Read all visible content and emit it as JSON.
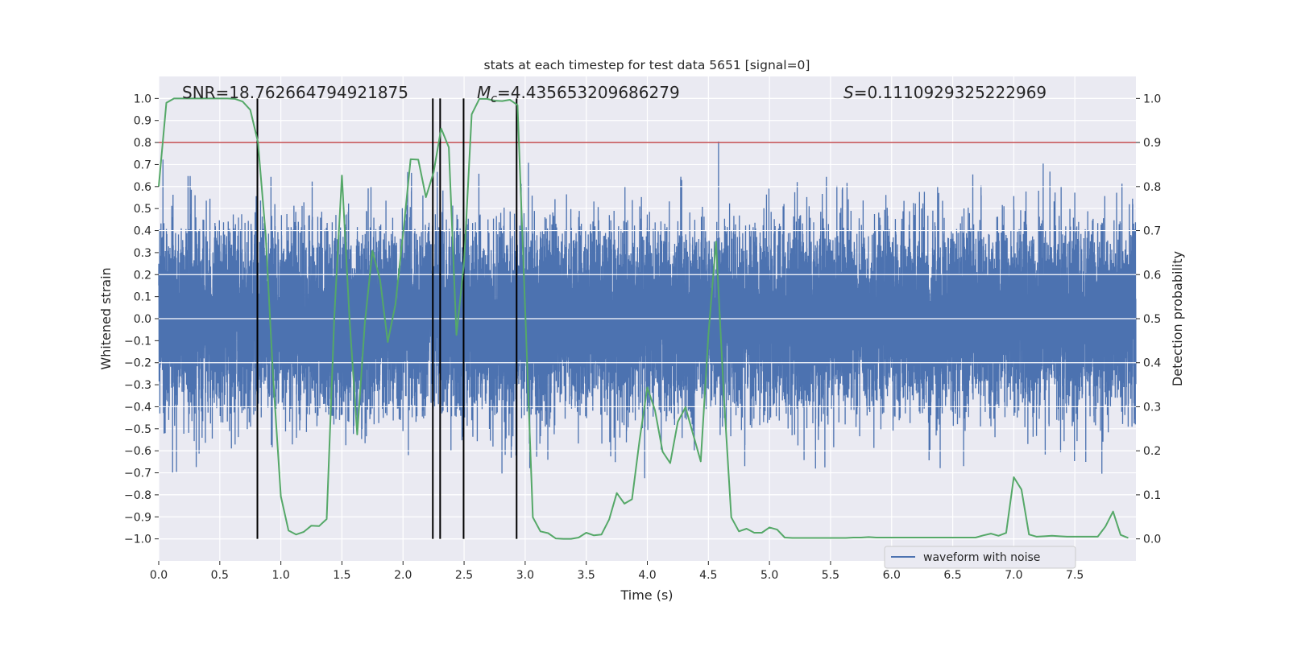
{
  "chart_data": {
    "type": "line",
    "title": "stats at each timestep for test data 5651 [signal=0]",
    "xlabel": "Time (s)",
    "ylabel": "Whitened strain",
    "y2label": "Detection probability",
    "xlim": [
      0,
      8
    ],
    "ylim": [
      -1.1,
      1.1
    ],
    "y2lim": [
      -0.05,
      1.05
    ],
    "xticks": [
      "0.0",
      "0.5",
      "1.0",
      "1.5",
      "2.0",
      "2.5",
      "3.0",
      "3.5",
      "4.0",
      "4.5",
      "5.0",
      "5.5",
      "6.0",
      "6.5",
      "7.0",
      "7.5"
    ],
    "yticks": [
      "1.0",
      "0.9",
      "0.8",
      "0.7",
      "0.6",
      "0.5",
      "0.4",
      "0.3",
      "0.2",
      "0.1",
      "0.0",
      "−0.1",
      "−0.2",
      "−0.3",
      "−0.4",
      "−0.5",
      "−0.6",
      "−0.7",
      "−0.8",
      "−0.9",
      "−1.0"
    ],
    "y2ticks": [
      "1.0",
      "0.9",
      "0.8",
      "0.7",
      "0.6",
      "0.5",
      "0.4",
      "0.3",
      "0.2",
      "0.1",
      "0.0"
    ],
    "grid": true,
    "background": "#eaeaf2",
    "annotations": {
      "snr": "SNR=18.762664794921875",
      "mc_symbol": "M",
      "mc_sub": "c",
      "mc_value": "=4.435653209686279",
      "s_symbol": "S",
      "s_value": "=0.1110929325222969"
    },
    "legend": {
      "position": "lower-right",
      "entries": [
        "waveform with noise"
      ]
    },
    "series": [
      {
        "name": "waveform with noise",
        "axis": "left",
        "color": "#4c72b0",
        "kind": "whitened noise, approx. within ±1.0"
      },
      {
        "axis": "right",
        "color": "#55a868",
        "x": [
          0,
          0.0625,
          0.125,
          0.1875,
          0.25,
          0.3125,
          0.375,
          0.4375,
          0.5,
          0.5625,
          0.625,
          0.6875,
          0.75,
          0.8125,
          0.875,
          0.9375,
          1.0,
          1.0625,
          1.125,
          1.1875,
          1.25,
          1.3125,
          1.375,
          1.4375,
          1.5,
          1.5625,
          1.625,
          1.6875,
          1.75,
          1.8125,
          1.875,
          1.9375,
          2.0,
          2.0625,
          2.125,
          2.1875,
          2.25,
          2.3125,
          2.375,
          2.4375,
          2.5,
          2.5625,
          2.625,
          2.6875,
          2.75,
          2.8125,
          2.875,
          2.9375,
          3.0,
          3.0625,
          3.125,
          3.1875,
          3.25,
          3.3125,
          3.375,
          3.4375,
          3.5,
          3.5625,
          3.625,
          3.6875,
          3.75,
          3.8125,
          3.875,
          3.9375,
          4.0,
          4.0625,
          4.125,
          4.1875,
          4.25,
          4.3125,
          4.375,
          4.4375,
          4.5,
          4.5625,
          4.625,
          4.6875,
          4.75,
          4.8125,
          4.875,
          4.9375,
          5.0,
          5.0625,
          5.125,
          5.1875,
          5.25,
          5.3125,
          5.375,
          5.4375,
          5.5,
          5.5625,
          5.625,
          5.6875,
          5.75,
          5.8125,
          5.875,
          5.9375,
          6.0,
          6.0625,
          6.125,
          6.1875,
          6.25,
          6.3125,
          6.375,
          6.4375,
          6.5,
          6.5625,
          6.625,
          6.6875,
          6.75,
          6.8125,
          6.875,
          6.9375,
          7.0,
          7.0625,
          7.125,
          7.1875,
          7.25,
          7.3125,
          7.375,
          7.4375,
          7.5,
          7.5625,
          7.625,
          7.6875,
          7.75,
          7.8125,
          7.875,
          7.9375
        ],
        "y": [
          0.8,
          0.99,
          1.0,
          1.0,
          1.0,
          1.0,
          1.0,
          1.0,
          1.0,
          1.0,
          0.999,
          0.993,
          0.974,
          0.901,
          0.692,
          0.365,
          0.097,
          0.019,
          0.01,
          0.016,
          0.03,
          0.029,
          0.045,
          0.505,
          0.825,
          0.498,
          0.237,
          0.491,
          0.654,
          0.588,
          0.447,
          0.532,
          0.692,
          0.862,
          0.861,
          0.776,
          0.832,
          0.932,
          0.889,
          0.463,
          0.63,
          0.964,
          0.999,
          0.999,
          0.995,
          0.994,
          0.997,
          0.985,
          0.52,
          0.049,
          0.017,
          0.013,
          0.001,
          0.0,
          0.0,
          0.003,
          0.014,
          0.008,
          0.01,
          0.044,
          0.104,
          0.08,
          0.09,
          0.226,
          0.344,
          0.292,
          0.198,
          0.172,
          0.266,
          0.299,
          0.237,
          0.176,
          0.463,
          0.675,
          0.331,
          0.049,
          0.017,
          0.023,
          0.014,
          0.014,
          0.026,
          0.021,
          0.003,
          0.002,
          0.002,
          0.002,
          0.002,
          0.002,
          0.002,
          0.002,
          0.002,
          0.003,
          0.003,
          0.004,
          0.003,
          0.003,
          0.003,
          0.003,
          0.003,
          0.003,
          0.003,
          0.003,
          0.003,
          0.003,
          0.003,
          0.003,
          0.003,
          0.003,
          0.008,
          0.012,
          0.007,
          0.0135,
          0.14,
          0.112,
          0.01,
          0.005,
          0.006,
          0.007,
          0.006,
          0.005,
          0.005,
          0.005,
          0.005,
          0.005,
          0.028,
          0.062,
          0.009,
          0.002
        ]
      }
    ],
    "threshold": {
      "axis": "right",
      "value": 0.9,
      "color": "#c44e52"
    },
    "vlines": {
      "axis": "right",
      "x": [
        0.808,
        2.244,
        2.304,
        2.496,
        2.93
      ],
      "from": 0.0,
      "to": 1.0,
      "color": "#000000"
    }
  }
}
